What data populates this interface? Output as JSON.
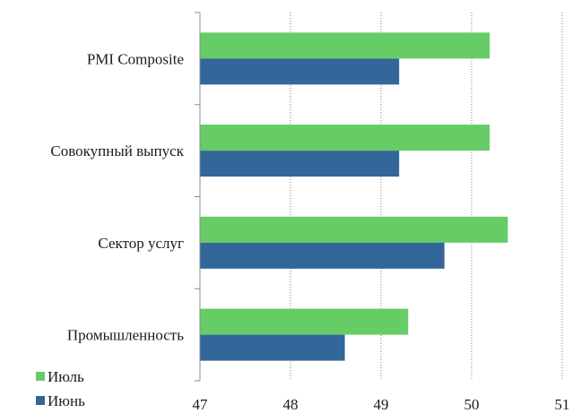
{
  "chart_data": {
    "type": "bar",
    "orientation": "horizontal",
    "categories": [
      "PMI Composite",
      "Совокупный выпуск",
      "Сектор услуг",
      "Промышленность"
    ],
    "series": [
      {
        "name": "Июль",
        "values": [
          50.2,
          50.2,
          50.4,
          49.3
        ],
        "color": "#66cc66"
      },
      {
        "name": "Июнь",
        "values": [
          49.2,
          49.2,
          49.7,
          48.6
        ],
        "color": "#336699"
      }
    ],
    "xlim": [
      47,
      51
    ],
    "xticks": [
      "47",
      "48",
      "49",
      "50",
      "51"
    ],
    "grid": "vertical dotted",
    "legend": "bottom-left"
  }
}
